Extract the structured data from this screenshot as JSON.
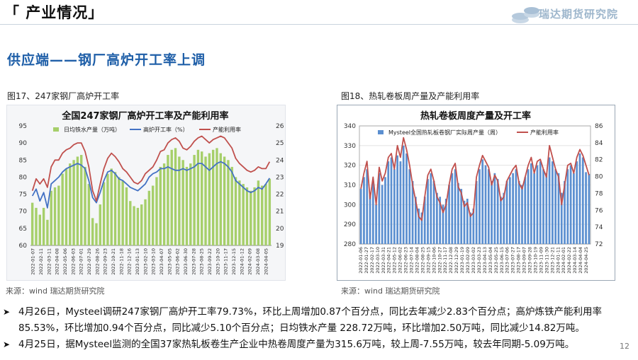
{
  "header": {
    "title": "「 产业情况」",
    "logo_text": "瑞达期货研究院",
    "subtitle": "供应端——钢厂高炉开工率上调"
  },
  "figures": {
    "fig1_caption": "图17、247家钢厂高炉开工率",
    "fig2_caption": "图18、热轧卷板周产量及产能利用率",
    "source1": "来源：wind    瑞达期货研究院",
    "source2": "来源：wind    瑞达期货研究院"
  },
  "bullets": [
    "4月26日，Mysteel调研247家钢厂高炉开工率79.73%，环比上周增加0.87个百分点，同比去年减少2.83个百分点；高炉炼铁产能利用率85.53%，环比增加0.94个百分点，同比减少5.10个百分点；日均铁水产量 228.72万吨，环比增加2.50万吨，同比减少14.82万吨。",
    "4月25日，据Mysteel监测的全国37家热轧板卷生产企业中热卷周度产量为315.6万吨，较上周-7.55万吨，较去年同期-5.09万吨。"
  ],
  "page_number": "12",
  "colors": {
    "bar_green": "#a6cf6a",
    "line_blue": "#4472c4",
    "line_red": "#c0504d",
    "bar_blue": "#5b8fd0",
    "title_blue": "#1f5fa8"
  },
  "chart_data": [
    {
      "type": "bar+line",
      "title": "全国247家钢厂高炉开工率及产能利用率",
      "legend": [
        "日均铁水产量（万吨）",
        "高炉开工率（%）",
        "产能利用率"
      ],
      "x_ticks": [
        "2022-01-07",
        "2022-02-11",
        "2022-03-11",
        "2022-04-08",
        "2022-05-06",
        "2022-06-03",
        "2022-07-01",
        "2022-07-29",
        "2022-08-26",
        "2022-09-23",
        "2022-10-21",
        "2022-11-18",
        "2022-12-16",
        "2023-01-13",
        "2023-02-10",
        "2023-03-10",
        "2023-04-07",
        "2023-05-05",
        "2023-06-02",
        "2023-06-30",
        "2023-07-28",
        "2023-08-25",
        "2023-09-22",
        "2023-10-20",
        "2023-11-17",
        "2023-12-15",
        "2024-01-12",
        "2024-02-09",
        "2024-03-08",
        "2024-04-05"
      ],
      "left_axis": {
        "min": 60,
        "max": 95,
        "ticks": [
          60,
          65,
          70,
          75,
          80,
          85,
          90,
          95
        ]
      },
      "right_axis": {
        "min": 190,
        "max": 260,
        "ticks": [
          190,
          200,
          210,
          220,
          230,
          240,
          250,
          260
        ]
      },
      "series": [
        {
          "name": "日均铁水产量（万吨）",
          "axis": "right",
          "kind": "bar",
          "values": [
            215,
            212,
            208,
            212,
            205,
            222,
            224,
            225,
            232,
            235,
            238,
            240,
            242,
            243,
            236,
            226,
            206,
            203,
            214,
            227,
            232,
            235,
            233,
            230,
            228,
            224,
            216,
            213,
            212,
            214,
            217,
            222,
            225,
            230,
            236,
            238,
            243,
            246,
            247,
            242,
            240,
            236,
            238,
            243,
            246,
            245,
            242,
            244,
            246,
            247,
            244,
            242,
            240,
            236,
            230,
            228,
            226,
            224,
            222,
            224,
            228,
            225,
            226,
            229
          ]
        },
        {
          "name": "高炉开工率（%）",
          "axis": "left",
          "kind": "line",
          "values": [
            74.5,
            76.5,
            73,
            75.5,
            71,
            78,
            79,
            80,
            81.5,
            82.5,
            83,
            83.5,
            84,
            83.5,
            82.5,
            79,
            74,
            72.5,
            75.5,
            79,
            81.5,
            82,
            81,
            79.5,
            79,
            78,
            77,
            76.5,
            76,
            77,
            78,
            80,
            81,
            81.5,
            82.5,
            82.5,
            83,
            82.5,
            82,
            82,
            82.5,
            82,
            82.5,
            83,
            84,
            84,
            83,
            82,
            83,
            84,
            84.5,
            84,
            83,
            81.5,
            79,
            78,
            77,
            76,
            75.5,
            76,
            77,
            76.5,
            78,
            79.7
          ]
        },
        {
          "name": "产能利用率",
          "axis": "right",
          "kind": "line",
          "values": [
            222,
            229,
            226,
            229,
            224,
            236,
            240,
            240,
            244,
            246,
            247,
            249,
            250,
            250,
            245,
            236,
            222,
            216,
            226,
            235,
            241,
            244,
            242,
            239,
            235,
            233,
            230,
            227,
            226,
            228,
            232,
            234,
            236,
            240,
            245,
            246,
            250,
            252,
            253,
            251,
            247,
            246,
            248,
            251,
            253,
            254,
            252,
            250,
            252,
            253,
            254,
            253,
            250,
            247,
            241,
            238,
            236,
            234,
            233,
            234,
            236,
            235,
            235,
            239
          ]
        }
      ]
    },
    {
      "type": "bar+line",
      "title": "热轧卷板周度产量及开工率",
      "legend": [
        "Mysteel全国热轧板卷钢厂实际周产量（周）",
        "产能利用率"
      ],
      "x_ticks": [
        "2022-01-06",
        "2022-01-27",
        "2022-02-17",
        "2022-03-10",
        "2022-03-31",
        "2022-04-21",
        "2022-05-12",
        "2022-06-02",
        "2022-06-23",
        "2022-07-14",
        "2022-08-04",
        "2022-08-25",
        "2022-09-15",
        "2022-10-06",
        "2022-10-27",
        "2022-11-17",
        "2022-12-08",
        "2022-12-29",
        "2023-01-19",
        "2023-02-09",
        "2023-03-02",
        "2023-03-23",
        "2023-04-13",
        "2023-05-04",
        "2023-05-25",
        "2023-06-15",
        "2023-07-06",
        "2023-07-27",
        "2023-08-17",
        "2023-09-07",
        "2023-09-28",
        "2023-10-19",
        "2023-11-09",
        "2023-11-30",
        "2023-12-21",
        "2024-01-11",
        "2024-02-01",
        "2024-02-22",
        "2024-03-14",
        "2024-04-04",
        "2024-04-25"
      ],
      "left_axis": {
        "min": 280,
        "max": 340,
        "ticks": [
          280,
          290,
          300,
          310,
          320,
          330,
          340
        ]
      },
      "right_axis": {
        "min": 72,
        "max": 86,
        "ticks": [
          72,
          74,
          76,
          78,
          80,
          82,
          84,
          86
        ]
      },
      "series": [
        {
          "name": "Mysteel全国热轧板卷钢厂实际周产量（周）",
          "axis": "left",
          "kind": "bar",
          "values": [
            308,
            314,
            318,
            305,
            312,
            300,
            316,
            310,
            314,
            322,
            324,
            318,
            325,
            322,
            330,
            326,
            318,
            312,
            304,
            298,
            296,
            304,
            313,
            316,
            312,
            306,
            304,
            300,
            303,
            310,
            316,
            318,
            311,
            308,
            302,
            303,
            296,
            298,
            312,
            318,
            323,
            320,
            318,
            312,
            316,
            313,
            304,
            306,
            312,
            314,
            316,
            318,
            312,
            310,
            314,
            318,
            321,
            316,
            320,
            322,
            318,
            316,
            324,
            322,
            318,
            316,
            306,
            312,
            318,
            320,
            316,
            322,
            326,
            324,
            316.5,
            315.6
          ]
        },
        {
          "name": "产能利用率",
          "axis": "left",
          "kind": "line",
          "values": [
            308,
            316,
            322,
            303,
            314,
            300,
            319,
            312,
            316,
            324,
            326,
            318,
            330,
            324,
            334,
            328,
            320,
            310,
            302,
            294,
            292,
            304,
            315,
            318,
            312,
            304,
            301,
            296,
            300,
            310,
            318,
            321,
            309,
            306,
            299,
            301,
            294,
            296,
            314,
            320,
            325,
            322,
            319,
            310,
            315,
            312,
            302,
            304,
            312,
            315,
            318,
            320,
            311,
            308,
            314,
            320,
            324,
            316,
            322,
            323,
            318,
            314,
            330,
            324,
            318,
            314,
            300,
            310,
            320,
            321,
            316,
            324,
            328,
            325,
            320,
            315
          ]
        }
      ]
    }
  ]
}
